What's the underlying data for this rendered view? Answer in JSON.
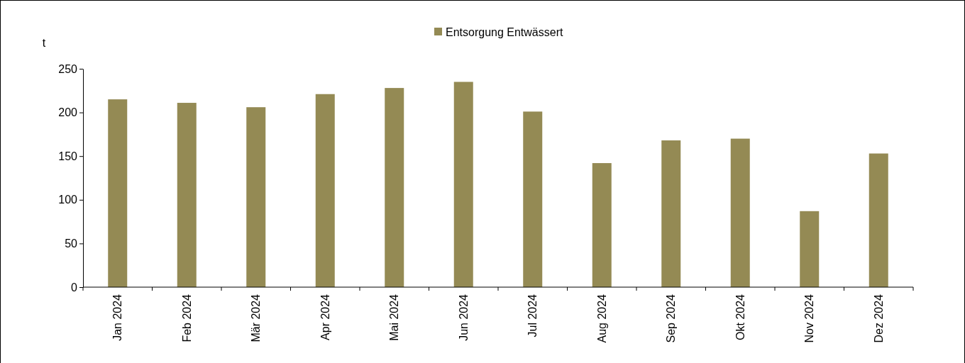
{
  "chart_data": {
    "type": "bar",
    "ylabel": "t",
    "categories": [
      "Jan 2024",
      "Feb 2024",
      "Mär 2024",
      "Apr 2024",
      "Mai 2024",
      "Jun 2024",
      "Jul 2024",
      "Aug 2024",
      "Sep 2024",
      "Okt 2024",
      "Nov 2024",
      "Dez 2024"
    ],
    "series": [
      {
        "name": "Entsorgung Entwässert",
        "color": "#948a54",
        "values": [
          215,
          211,
          206,
          221,
          228,
          235,
          201,
          142,
          168,
          170,
          87,
          153
        ]
      }
    ],
    "ylim": [
      0,
      250
    ],
    "yticks": [
      0,
      50,
      100,
      150,
      200,
      250
    ],
    "grid": false,
    "legend": "top"
  }
}
